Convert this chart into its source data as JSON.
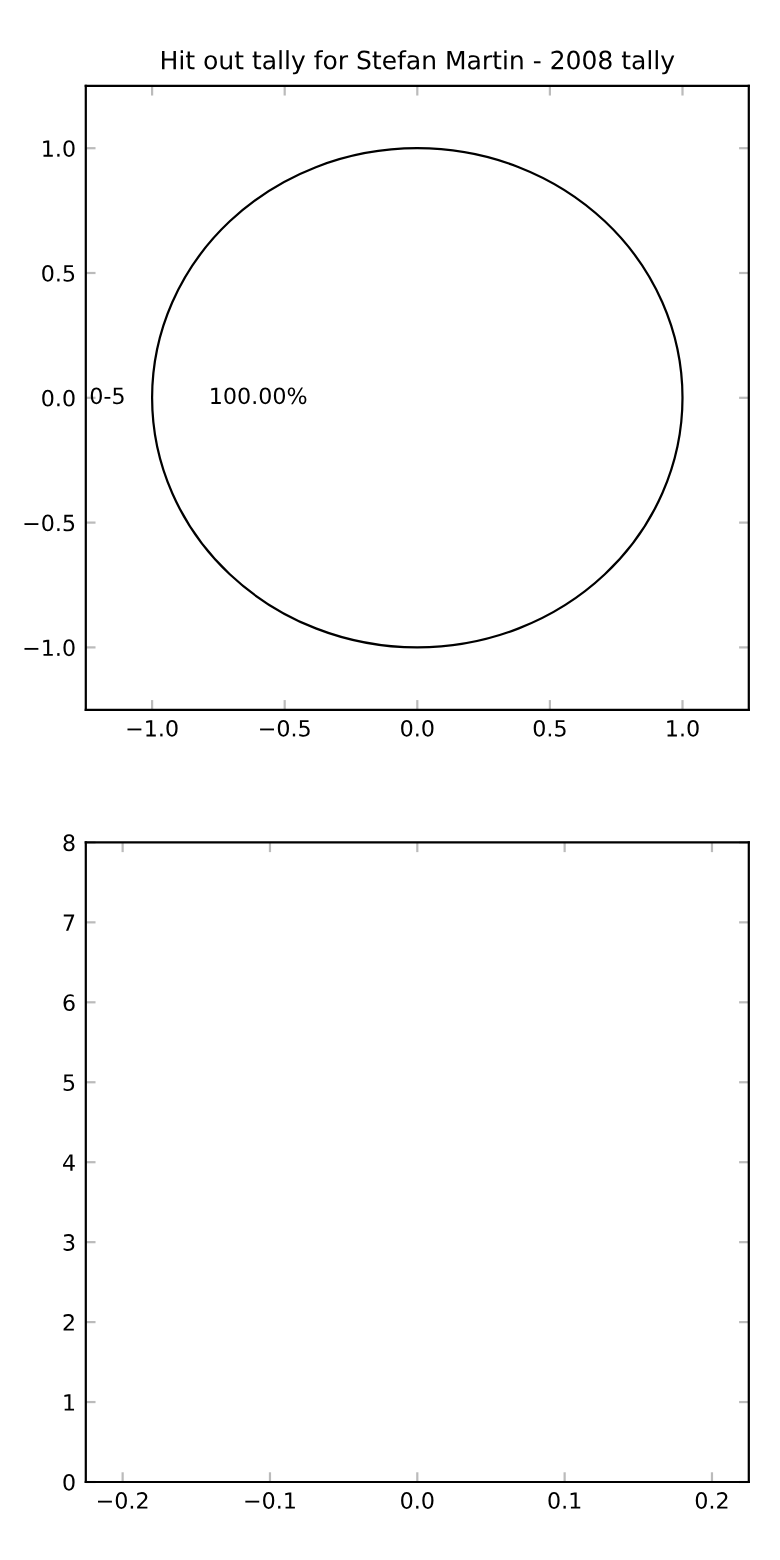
{
  "chart_data": [
    {
      "type": "scatter",
      "title": "Hit out tally for Stefan Martin - 2008 tally",
      "xlim": [
        -1.25,
        1.25
      ],
      "ylim": [
        -1.25,
        1.25
      ],
      "xticks": [
        {
          "value": -1.0,
          "label": "−1.0"
        },
        {
          "value": -0.5,
          "label": "−0.5"
        },
        {
          "value": 0.0,
          "label": "0.0"
        },
        {
          "value": 0.5,
          "label": "0.5"
        },
        {
          "value": 1.0,
          "label": "1.0"
        }
      ],
      "yticks": [
        {
          "value": -1.0,
          "label": "−1.0"
        },
        {
          "value": -0.5,
          "label": "−0.5"
        },
        {
          "value": 0.0,
          "label": "0.0"
        },
        {
          "value": 0.5,
          "label": "0.5"
        },
        {
          "value": 1.0,
          "label": "1.0"
        }
      ]
    },
    {
      "type": "pie",
      "categories": [
        "0-5"
      ],
      "values": [
        100
      ],
      "colors": [
        "#ffffff"
      ],
      "value_labels": [
        "100.00%"
      ]
    },
    {
      "type": "scatter",
      "xlim": [
        -0.225,
        0.225
      ],
      "ylim": [
        0,
        8
      ],
      "xticks": [
        {
          "value": -0.2,
          "label": "−0.2"
        },
        {
          "value": -0.1,
          "label": "−0.1"
        },
        {
          "value": 0.0,
          "label": "0.0"
        },
        {
          "value": 0.1,
          "label": "0.1"
        },
        {
          "value": 0.2,
          "label": "0.2"
        }
      ],
      "yticks": [
        0,
        1,
        2,
        3,
        4,
        5,
        6,
        7,
        8
      ]
    }
  ]
}
